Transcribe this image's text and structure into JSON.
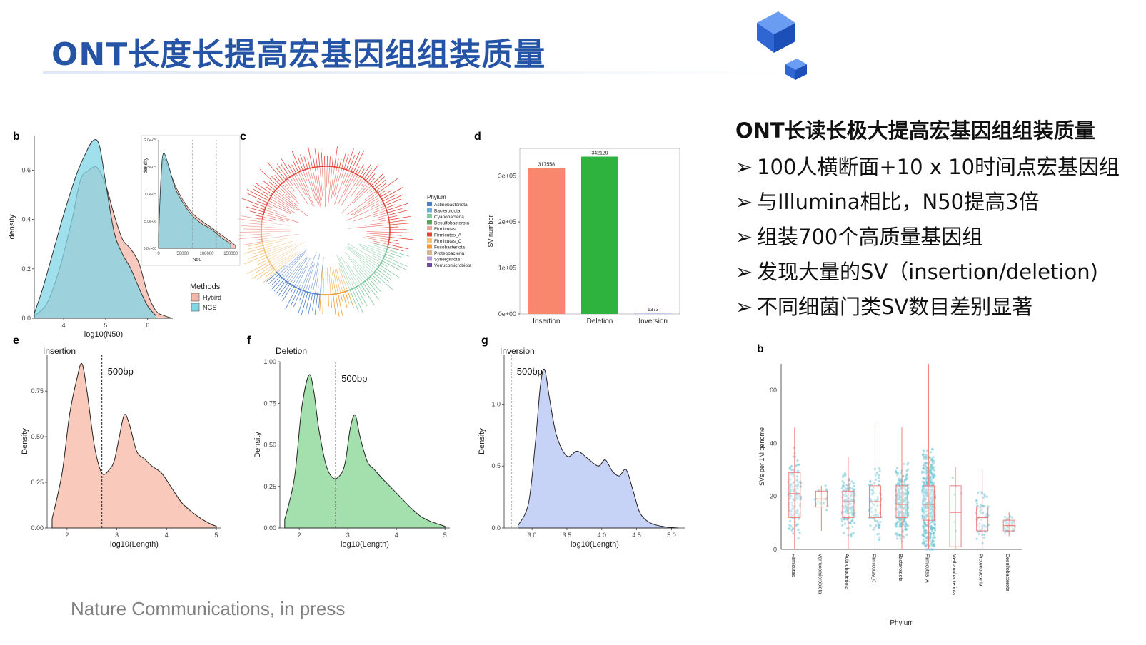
{
  "slide": {
    "title": "ONT长度长提高宏基因组组装质量",
    "citation": "Nature Communications, in press"
  },
  "right_panel": {
    "heading": "ONT长读长极大提高宏基因组组装质量",
    "bullet_marker": "➢",
    "bullets": [
      "100人横断面+10 x 10时间点宏基因组",
      "与Illumina相比，N50提高3倍",
      "组装700个高质量基因组",
      "发现大量的SV（insertion/deletion)",
      "不同细菌门类SV数目差别显著"
    ]
  },
  "colors": {
    "title_blue": "#2554a6",
    "hybird": "#f4b6a8",
    "ngs": "#7fd6e6",
    "insertion": "#f8876e",
    "deletion": "#2db33e",
    "inversion": "#b9c6f5",
    "ins_density": "#f9c9bb",
    "del_density": "#a4e0ae",
    "inv_density": "#c7d2f7",
    "box_points": "#6fc7d6",
    "box_line": "#ef7f7f"
  },
  "chart_data": [
    {
      "panel": "b",
      "type": "area",
      "xlabel": "log10(N50)",
      "ylabel": "density",
      "xticks": [
        "4",
        "5",
        "6"
      ],
      "yticks": [
        "0.0",
        "0.2",
        "0.4",
        "0.6"
      ],
      "xlim": [
        3.3,
        6.6
      ],
      "ylim": [
        0,
        0.74
      ],
      "legend_title": "Methods",
      "legend_position": "right",
      "series": [
        {
          "name": "Hybird",
          "color": "#f4b6a8",
          "x": [
            3.3,
            3.6,
            3.9,
            4.2,
            4.4,
            4.6,
            4.8,
            5.0,
            5.2,
            5.4,
            5.6,
            5.8,
            6.0,
            6.2,
            6.4,
            6.6
          ],
          "y": [
            0.01,
            0.06,
            0.2,
            0.4,
            0.56,
            0.6,
            0.61,
            0.54,
            0.42,
            0.32,
            0.28,
            0.22,
            0.1,
            0.03,
            0.01,
            0.0
          ]
        },
        {
          "name": "NGS",
          "color": "#7fd6e6",
          "x": [
            3.3,
            3.5,
            3.8,
            4.0,
            4.3,
            4.5,
            4.7,
            4.85,
            5.0,
            5.2,
            5.4,
            5.6,
            5.8,
            6.0,
            6.2
          ],
          "y": [
            0.02,
            0.12,
            0.3,
            0.42,
            0.58,
            0.66,
            0.72,
            0.7,
            0.55,
            0.35,
            0.26,
            0.2,
            0.12,
            0.05,
            0.01
          ]
        }
      ],
      "inset": {
        "xlabel": "N50",
        "ylabel": "density",
        "xticks": [
          "0",
          "50000",
          "100000",
          "150000"
        ],
        "yticks": [
          "0.0e+00",
          "5.0e-06",
          "1.0e-05",
          "1.5e-05",
          "2.0e-05"
        ],
        "xlim": [
          0,
          160000
        ],
        "ylim": [
          0,
          2e-05
        ],
        "vlines": [
          70000,
          120000
        ],
        "series": [
          {
            "name": "Hybird",
            "color": "#f4b6a8",
            "x": [
              0,
              5000,
              10000,
              20000,
              35000,
              50000,
              70000,
              90000,
              110000,
              130000,
              150000,
              160000
            ],
            "y": [
              2e-06,
              1.2e-05,
              1.65e-05,
              1.5e-05,
              1.15e-05,
              9e-06,
              6.5e-06,
              5e-06,
              3.8e-06,
              2.5e-06,
              1.2e-06,
              5e-07
            ]
          },
          {
            "name": "NGS",
            "color": "#7fd6e6",
            "x": [
              0,
              5000,
              10000,
              20000,
              35000,
              50000,
              70000,
              90000,
              110000,
              130000,
              150000
            ],
            "y": [
              2e-06,
              1.3e-05,
              1.75e-05,
              1.55e-05,
              1.1e-05,
              8.5e-06,
              6e-06,
              4.5e-06,
              3.5e-06,
              2e-06,
              8e-07
            ]
          }
        ]
      }
    },
    {
      "panel": "c",
      "type": "tree",
      "legend_title": "Phylum",
      "legend": [
        {
          "name": "Actinobacteriota",
          "color": "#4f7fc9"
        },
        {
          "name": "Bacteroidota",
          "color": "#6fb0d8"
        },
        {
          "name": "Cyanobacteria",
          "color": "#82c8a0"
        },
        {
          "name": "Desulfobacterota",
          "color": "#57a85a"
        },
        {
          "name": "Firmicutes",
          "color": "#f2a39a"
        },
        {
          "name": "Firmicutes_A",
          "color": "#e3473c"
        },
        {
          "name": "Firmicutes_C",
          "color": "#f7c27a"
        },
        {
          "name": "Fusobacteriota",
          "color": "#f39a2e"
        },
        {
          "name": "Proteobacteria",
          "color": "#d7b38f"
        },
        {
          "name": "Synergistota",
          "color": "#b59ad6"
        },
        {
          "name": "Verrucomicrobiota",
          "color": "#6b4aa0"
        }
      ]
    },
    {
      "panel": "d",
      "type": "bar",
      "categories": [
        "Insertion",
        "Deletion",
        "Inversion"
      ],
      "values": [
        317558,
        342129,
        1373
      ],
      "value_labels": [
        "317558",
        "342129",
        "1373"
      ],
      "colors": [
        "#f8876e",
        "#2db33e",
        "#b9c6f5"
      ],
      "ylabel": "SV number",
      "yticks": [
        "0e+00",
        "1e+05",
        "2e+05",
        "3e+05"
      ],
      "ylim": [
        0,
        360000
      ]
    },
    {
      "panel": "e",
      "type": "area",
      "title": "Insertion",
      "xlabel": "log10(Length)",
      "ylabel": "Density",
      "xticks": [
        "2",
        "3",
        "4",
        "5"
      ],
      "yticks": [
        "0.00",
        "0.25",
        "0.50",
        "0.75"
      ],
      "xlim": [
        1.6,
        5.1
      ],
      "ylim": [
        0,
        0.95
      ],
      "vline": {
        "x": 2.7,
        "label": "500bp"
      },
      "color": "#f9c9bb",
      "x": [
        1.7,
        1.9,
        2.05,
        2.2,
        2.3,
        2.4,
        2.55,
        2.7,
        2.85,
        2.95,
        3.05,
        3.15,
        3.25,
        3.4,
        3.55,
        3.7,
        3.9,
        4.1,
        4.3,
        4.5,
        4.7,
        4.9,
        5.0
      ],
      "y": [
        0.05,
        0.3,
        0.62,
        0.82,
        0.9,
        0.75,
        0.45,
        0.3,
        0.32,
        0.37,
        0.5,
        0.62,
        0.57,
        0.42,
        0.38,
        0.34,
        0.3,
        0.22,
        0.14,
        0.09,
        0.05,
        0.02,
        0.01
      ]
    },
    {
      "panel": "f",
      "type": "area",
      "title": "Deletion",
      "xlabel": "log10(Length)",
      "ylabel": "Density",
      "xticks": [
        "2",
        "3",
        "4",
        "5"
      ],
      "yticks": [
        "0.00",
        "0.25",
        "0.50",
        "0.75",
        "1.00"
      ],
      "xlim": [
        1.6,
        5.1
      ],
      "ylim": [
        0,
        1.0
      ],
      "vline": {
        "x": 2.75,
        "label": "500bp"
      },
      "color": "#a4e0ae",
      "x": [
        1.7,
        1.9,
        2.05,
        2.2,
        2.3,
        2.4,
        2.55,
        2.7,
        2.85,
        2.95,
        3.05,
        3.15,
        3.25,
        3.4,
        3.55,
        3.7,
        3.9,
        4.1,
        4.3,
        4.5,
        4.7,
        4.9,
        5.0
      ],
      "y": [
        0.05,
        0.3,
        0.72,
        0.92,
        0.82,
        0.6,
        0.38,
        0.3,
        0.32,
        0.4,
        0.6,
        0.68,
        0.55,
        0.4,
        0.35,
        0.3,
        0.24,
        0.18,
        0.12,
        0.07,
        0.04,
        0.02,
        0.01
      ]
    },
    {
      "panel": "g",
      "type": "area",
      "title": "Inversion",
      "xlabel": "log10(Length)",
      "ylabel": "Density",
      "xticks": [
        "3.0",
        "3.5",
        "4.0",
        "4.5",
        "5.0"
      ],
      "yticks": [
        "0.0",
        "0.5",
        "1.0"
      ],
      "xlim": [
        2.6,
        5.2
      ],
      "ylim": [
        0,
        1.4
      ],
      "vline": {
        "x": 2.7,
        "label": "500bp"
      },
      "color": "#c7d2f7",
      "x": [
        2.8,
        2.95,
        3.05,
        3.12,
        3.18,
        3.25,
        3.35,
        3.5,
        3.65,
        3.8,
        3.95,
        4.05,
        4.15,
        4.25,
        4.35,
        4.45,
        4.55,
        4.7,
        4.9,
        5.1
      ],
      "y": [
        0.02,
        0.2,
        0.7,
        1.15,
        1.28,
        1.05,
        0.75,
        0.58,
        0.62,
        0.56,
        0.5,
        0.55,
        0.46,
        0.42,
        0.47,
        0.3,
        0.12,
        0.04,
        0.01,
        0.0
      ]
    },
    {
      "panel": "b",
      "type": "box",
      "xlabel": "Phylum",
      "ylabel": "SVs per 1M genome",
      "yticks": [
        "0",
        "20",
        "40",
        "60"
      ],
      "ylim": [
        0,
        70
      ],
      "categories": [
        "Firmicutes",
        "Verrucomicrobiota",
        "Actinobacteriota",
        "Firmicutes_C",
        "Bacteroidota",
        "Firmicutes_A",
        "Methanobacteriota",
        "Proteobacteria",
        "Desulfobacterota"
      ],
      "boxes": [
        {
          "min": 0,
          "q1": 12,
          "median": 21,
          "q3": 29,
          "max": 46,
          "n": 120
        },
        {
          "min": 7,
          "q1": 16,
          "median": 19,
          "q3": 22,
          "max": 24,
          "n": 14
        },
        {
          "min": 0,
          "q1": 12,
          "median": 18,
          "q3": 22,
          "max": 35,
          "n": 150
        },
        {
          "min": 0,
          "q1": 12,
          "median": 18,
          "q3": 24,
          "max": 47,
          "n": 80
        },
        {
          "min": 0,
          "q1": 12,
          "median": 17,
          "q3": 24,
          "max": 46,
          "n": 260
        },
        {
          "min": 0,
          "q1": 11,
          "median": 17,
          "q3": 24,
          "max": 70,
          "n": 500
        },
        {
          "min": 0,
          "q1": 1,
          "median": 14,
          "q3": 24,
          "max": 31,
          "n": 6
        },
        {
          "min": 0,
          "q1": 7,
          "median": 12,
          "q3": 16,
          "max": 30,
          "n": 60
        },
        {
          "min": 5,
          "q1": 7,
          "median": 9,
          "q3": 11,
          "max": 14,
          "n": 30
        }
      ]
    }
  ]
}
